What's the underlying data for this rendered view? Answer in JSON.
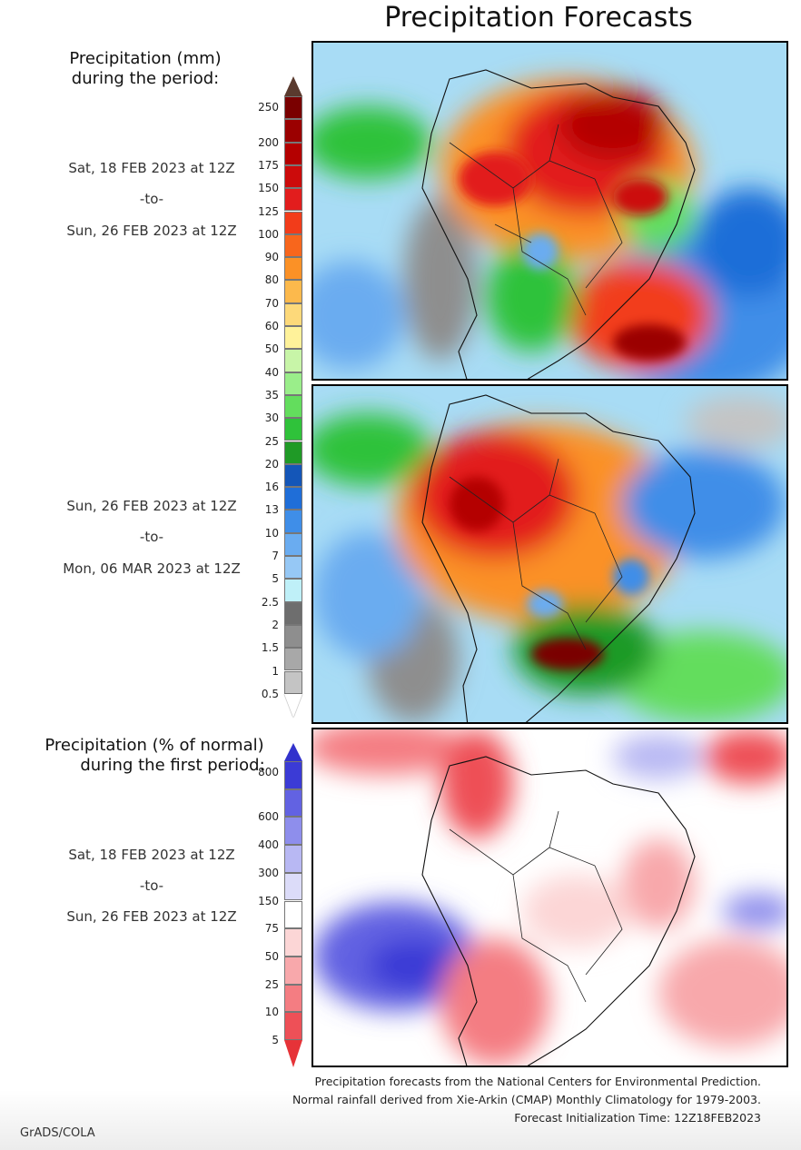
{
  "title": "Precipitation Forecasts",
  "panel_top": {
    "label_line1": "Precipitation (mm)",
    "label_line2": "during the period:",
    "start": "Sat, 18 FEB 2023 at 12Z",
    "sep": "-to-",
    "end": "Sun, 26 FEB 2023 at 12Z"
  },
  "panel_mid": {
    "start": "Sun, 26 FEB 2023 at 12Z",
    "sep": "-to-",
    "end": "Mon, 06 MAR 2023 at 12Z"
  },
  "panel_bottom": {
    "label_line1": "Precipitation (% of normal)",
    "label_line2": "during the first period:",
    "start": "Sat, 18 FEB 2023 at 12Z",
    "sep": "-to-",
    "end": "Sun, 26 FEB 2023 at 12Z"
  },
  "precip_scale": {
    "ticks": [
      "250",
      "200",
      "175",
      "150",
      "125",
      "100",
      "90",
      "80",
      "70",
      "60",
      "50",
      "40",
      "35",
      "30",
      "25",
      "20",
      "16",
      "13",
      "10",
      "7",
      "5",
      "2.5",
      "2",
      "1.5",
      "1",
      "0.5"
    ],
    "colors": [
      "#7a0000",
      "#9b0000",
      "#b40000",
      "#cc0b0b",
      "#e21d1d",
      "#f23c1a",
      "#f8661c",
      "#fb9126",
      "#fcb94c",
      "#fdd97a",
      "#fff29a",
      "#c8f5a8",
      "#9aee8a",
      "#63dd5d",
      "#2fc23a",
      "#1f9a26",
      "#1456b8",
      "#1f6ed8",
      "#3f8ee8",
      "#6aacf0",
      "#96c8f5",
      "#bff0f8",
      "#6e6e6e",
      "#8e8e8e",
      "#a8a8a8",
      "#c4c4c4"
    ],
    "top_color": "#5a3a2e",
    "bottom_color": "#ffffff"
  },
  "pct_scale": {
    "ticks": [
      "800",
      "600",
      "400",
      "300",
      "150",
      "75",
      "50",
      "25",
      "10",
      "5"
    ],
    "colors": [
      "#3b3bd6",
      "#6262e2",
      "#8e8eec",
      "#b8b8f3",
      "#dcdcf9",
      "#ffffff",
      "#fcd6d6",
      "#f8a8ab",
      "#f47d82",
      "#ee5057"
    ],
    "top_color": "#3232cc",
    "bottom_color": "#e63338"
  },
  "footer": {
    "line1": "Precipitation forecasts from the National Centers for Environmental Prediction.",
    "line2": "Normal rainfall derived from Xie-Arkin (CMAP) Monthly Climatology for 1979-2003.",
    "line3": "Forecast Initialization Time: 12Z18FEB2023"
  },
  "credit": "GrADS/COLA"
}
